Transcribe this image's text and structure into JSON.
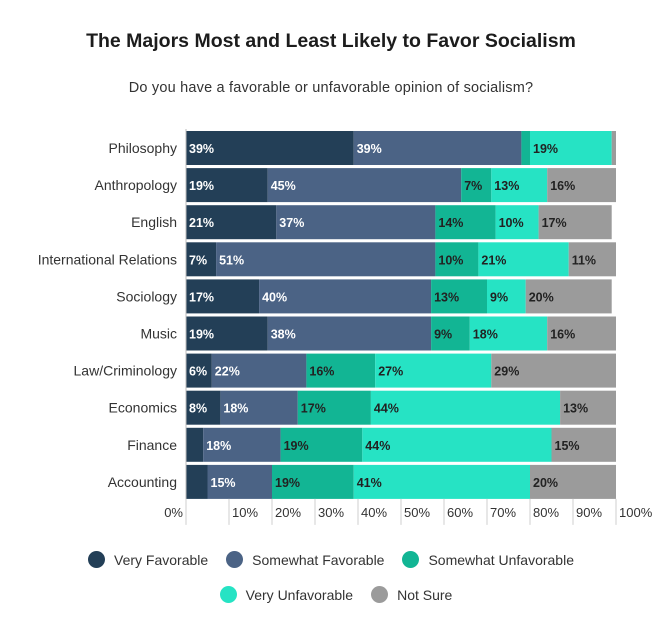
{
  "chart_data": {
    "type": "bar",
    "orientation": "horizontal",
    "stacked": true,
    "title": "The Majors Most and Least Likely to Favor Socialism",
    "subtitle": "Do you have a favorable or unfavorable opinion of socialism?",
    "categories": [
      "Philosophy",
      "Anthropology",
      "English",
      "International Relations",
      "Sociology",
      "Music",
      "Law/Criminology",
      "Economics",
      "Finance",
      "Accounting"
    ],
    "series": [
      {
        "name": "Very Favorable",
        "color": "#233f57",
        "label_color": "#ffffff",
        "values": [
          39,
          19,
          21,
          7,
          17,
          19,
          6,
          8,
          4,
          5
        ]
      },
      {
        "name": "Somewhat Favorable",
        "color": "#4b6385",
        "label_color": "#ffffff",
        "values": [
          39,
          45,
          37,
          51,
          40,
          38,
          22,
          18,
          18,
          15
        ]
      },
      {
        "name": "Somewhat Unfavorable",
        "color": "#12b594",
        "label_color": "#222222",
        "values": [
          2,
          7,
          14,
          10,
          13,
          9,
          16,
          17,
          19,
          19
        ]
      },
      {
        "name": "Very Unfavorable",
        "color": "#26e3c4",
        "label_color": "#222222",
        "values": [
          19,
          13,
          10,
          21,
          9,
          18,
          27,
          44,
          44,
          41
        ]
      },
      {
        "name": "Not Sure",
        "color": "#9b9b9b",
        "label_color": "#222222",
        "values": [
          1,
          16,
          17,
          11,
          20,
          16,
          29,
          13,
          15,
          20
        ]
      }
    ],
    "data_labels": [
      [
        "39%",
        "39%",
        "",
        "19%",
        ""
      ],
      [
        "19%",
        "45%",
        "7%",
        "13%",
        "16%"
      ],
      [
        "21%",
        "37%",
        "14%",
        "10%",
        "17%"
      ],
      [
        "7%",
        "51%",
        "10%",
        "21%",
        "11%"
      ],
      [
        "17%",
        "40%",
        "13%",
        "9%",
        "20%"
      ],
      [
        "19%",
        "38%",
        "9%",
        "18%",
        "16%"
      ],
      [
        "6%",
        "22%",
        "16%",
        "27%",
        "29%"
      ],
      [
        "8%",
        "18%",
        "17%",
        "44%",
        "13%"
      ],
      [
        "",
        "18%",
        "19%",
        "44%",
        "15%"
      ],
      [
        "",
        "15%",
        "19%",
        "41%",
        "20%"
      ]
    ],
    "xlim": [
      0,
      100
    ],
    "x_ticks": [
      "0%",
      "10%",
      "20%",
      "30%",
      "40%",
      "50%",
      "60%",
      "70%",
      "80%",
      "90%",
      "100%"
    ],
    "grid": false,
    "legend_position": "bottom"
  }
}
